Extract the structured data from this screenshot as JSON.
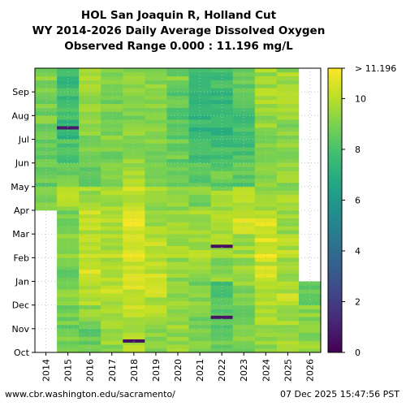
{
  "chart_data": {
    "type": "heatmap",
    "title": "HOL San Joaquin R, Holland Cut",
    "subtitle": "WY 2014-2026 Daily Average Dissolved Oxygen",
    "range_label": "Observed Range 0.000 : 11.196 mg/L",
    "x_categories": [
      "2014",
      "2015",
      "2016",
      "2017",
      "2018",
      "2019",
      "2020",
      "2021",
      "2022",
      "2023",
      "2024",
      "2025",
      "2026"
    ],
    "y_months": [
      "Oct",
      "Nov",
      "Dec",
      "Jan",
      "Feb",
      "Mar",
      "Apr",
      "May",
      "Jun",
      "Jul",
      "Aug",
      "Sep"
    ],
    "color_scale": {
      "name": "viridis",
      "min": 0,
      "max": 11.196,
      "ticks": [
        0,
        2,
        4,
        6,
        8,
        10
      ],
      "max_label": "> 11.196"
    },
    "grid": true,
    "columns": [
      {
        "year": "2014",
        "data_start": "Apr",
        "value_by_month": [
          null,
          null,
          null,
          null,
          null,
          null,
          9.2,
          8.6,
          8.7,
          8.9,
          8.8,
          9.0
        ],
        "lows": []
      },
      {
        "year": "2015",
        "value_by_month": [
          9.0,
          8.7,
          9.2,
          8.8,
          9.1,
          8.9,
          9.6,
          8.9,
          8.0,
          7.6,
          7.8,
          7.7
        ],
        "lows": [
          {
            "month": "Jul",
            "value": 0.8
          }
        ]
      },
      {
        "year": "2016",
        "value_by_month": [
          8.6,
          9.3,
          10.2,
          10.5,
          10.3,
          10.1,
          9.6,
          8.8,
          8.8,
          9.1,
          9.2,
          9.4
        ],
        "lows": []
      },
      {
        "year": "2017",
        "value_by_month": [
          9.3,
          9.5,
          10.0,
          10.0,
          9.9,
          9.7,
          9.6,
          9.3,
          9.0,
          9.1,
          9.0,
          9.1
        ],
        "lows": []
      },
      {
        "year": "2018",
        "value_by_month": [
          9.6,
          10.0,
          10.3,
          10.4,
          10.5,
          10.7,
          10.2,
          9.6,
          9.3,
          9.1,
          9.3,
          9.4
        ],
        "lows": [
          {
            "month": "Oct",
            "value": 0.5
          }
        ]
      },
      {
        "year": "2019",
        "value_by_month": [
          9.4,
          9.7,
          10.0,
          10.2,
          10.0,
          9.8,
          9.5,
          9.3,
          9.1,
          9.0,
          9.2,
          9.2
        ],
        "lows": []
      },
      {
        "year": "2020",
        "value_by_month": [
          9.4,
          9.6,
          9.5,
          9.4,
          9.5,
          9.4,
          9.3,
          8.9,
          8.6,
          8.3,
          8.5,
          8.9
        ],
        "lows": []
      },
      {
        "year": "2021",
        "value_by_month": [
          9.2,
          9.0,
          9.0,
          9.4,
          9.6,
          9.5,
          9.0,
          8.3,
          7.7,
          7.4,
          7.6,
          7.9
        ],
        "lows": []
      },
      {
        "year": "2022",
        "value_by_month": [
          8.8,
          8.5,
          7.9,
          9.2,
          9.6,
          9.6,
          9.4,
          8.5,
          7.8,
          7.4,
          7.5,
          7.9
        ],
        "lows": [
          {
            "month": "Nov",
            "value": 0.6
          },
          {
            "month": "Feb",
            "value": 0.4
          }
        ]
      },
      {
        "year": "2023",
        "value_by_month": [
          9.0,
          8.9,
          9.2,
          9.4,
          9.6,
          10.4,
          9.8,
          8.3,
          7.9,
          7.8,
          8.2,
          8.5
        ],
        "lows": []
      },
      {
        "year": "2024",
        "value_by_month": [
          9.3,
          9.6,
          10.0,
          10.2,
          10.6,
          10.4,
          9.6,
          9.2,
          9.2,
          9.3,
          9.5,
          9.6
        ],
        "lows": []
      },
      {
        "year": "2025",
        "value_by_month": [
          9.5,
          9.6,
          10.0,
          9.6,
          9.9,
          9.6,
          9.5,
          9.3,
          9.2,
          9.3,
          9.5,
          9.5
        ],
        "lows": []
      },
      {
        "year": "2026",
        "data_end": "Dec",
        "value_by_month": [
          9.3,
          9.1,
          8.8,
          null,
          null,
          null,
          null,
          null,
          null,
          null,
          null,
          null
        ],
        "lows": []
      }
    ]
  },
  "footer": {
    "source": "www.cbr.washington.edu/sacramento/",
    "timestamp": "07 Dec 2025 15:47:56 PST"
  }
}
